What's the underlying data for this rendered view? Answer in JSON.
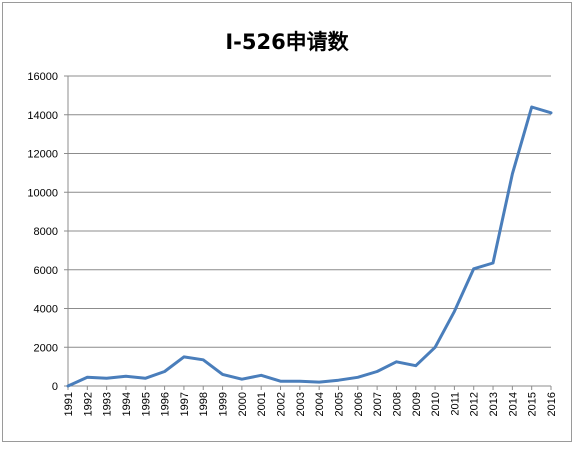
{
  "chart_data": {
    "type": "line",
    "title": "I-526申请数",
    "xlabel": "",
    "ylabel": "",
    "ylim": [
      0,
      16000
    ],
    "yticks": [
      0,
      2000,
      4000,
      6000,
      8000,
      10000,
      12000,
      14000,
      16000
    ],
    "grid": true,
    "legend": "none",
    "line_color": "#4a7ebb",
    "categories": [
      "1991",
      "1992",
      "1993",
      "1994",
      "1995",
      "1996",
      "1997",
      "1998",
      "1999",
      "2000",
      "2001",
      "2002",
      "2003",
      "2004",
      "2005",
      "2006",
      "2007",
      "2008",
      "2009",
      "2010",
      "2011",
      "2012",
      "2013",
      "2014",
      "2015",
      "2016"
    ],
    "values": [
      0,
      450,
      400,
      500,
      400,
      750,
      1500,
      1350,
      600,
      350,
      550,
      250,
      250,
      200,
      300,
      450,
      750,
      1250,
      1050,
      2000,
      3850,
      6050,
      6350,
      10950,
      14400,
      14100
    ]
  }
}
